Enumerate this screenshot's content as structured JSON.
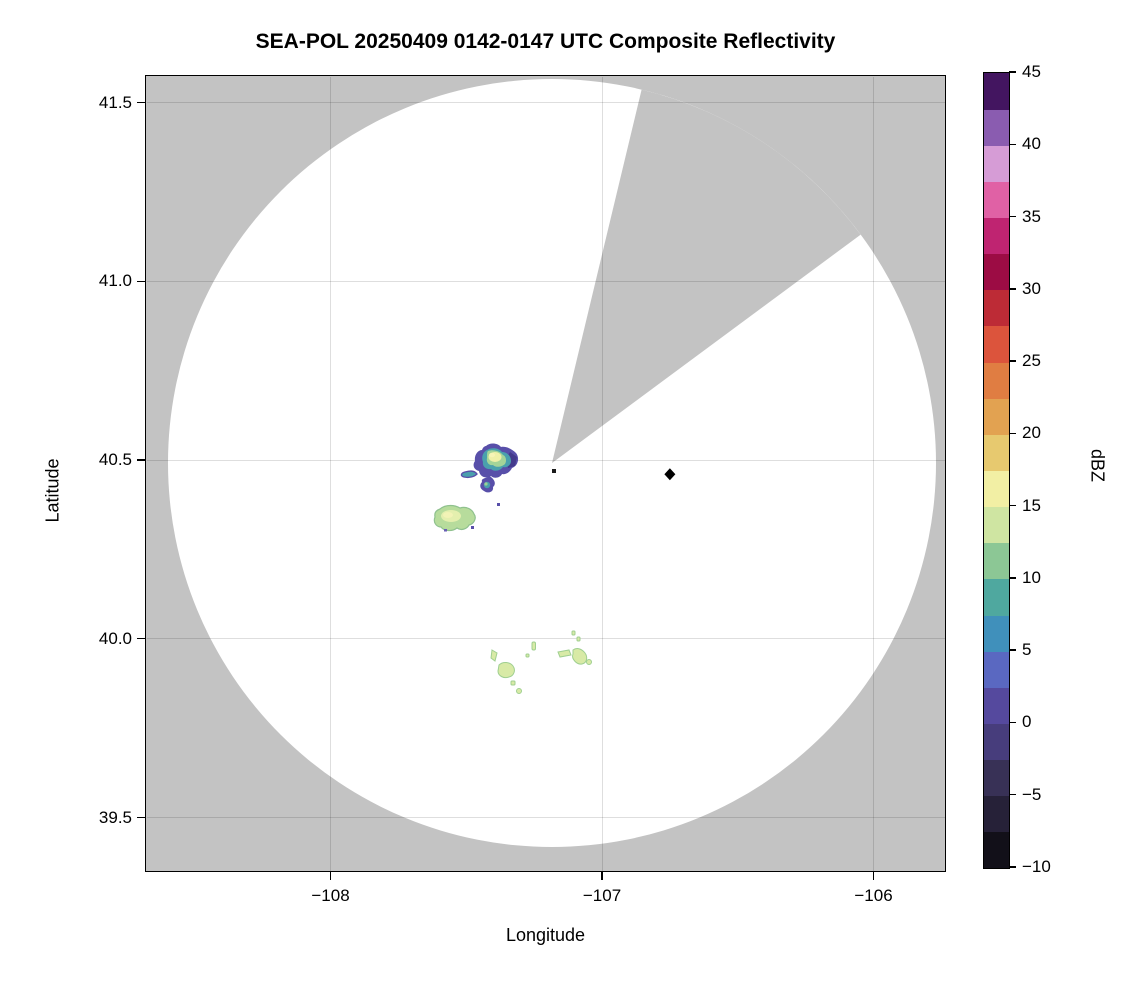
{
  "title": "SEA-POL 20250409 0142-0147 UTC Composite Reflectivity",
  "chart_data": {
    "type": "heatmap",
    "subtype": "radar-composite-reflectivity-ppi",
    "title": "SEA-POL 20250409 0142-0147 UTC Composite Reflectivity",
    "xlabel": "Longitude",
    "ylabel": "Latitude",
    "xlim": [
      -108.68,
      -105.74
    ],
    "ylim": [
      39.33,
      41.57
    ],
    "grid": true,
    "xticks": [
      {
        "label": "−108",
        "value": -108
      },
      {
        "label": "−107",
        "value": -107
      },
      {
        "label": "−106",
        "value": -106
      }
    ],
    "yticks": [
      {
        "label": "41.5",
        "value": 41.5
      },
      {
        "label": "41.0",
        "value": 41.0
      },
      {
        "label": "40.5",
        "value": 40.5
      },
      {
        "label": "40.0",
        "value": 40.0
      },
      {
        "label": "39.5",
        "value": 39.5
      }
    ],
    "colorbar": {
      "label": "dBZ",
      "vmin": -10,
      "vmax": 45,
      "orientation": "vertical-right",
      "ticks": [
        {
          "label": "45",
          "value": 45
        },
        {
          "label": "40",
          "value": 40
        },
        {
          "label": "35",
          "value": 35
        },
        {
          "label": "30",
          "value": 30
        },
        {
          "label": "25",
          "value": 25
        },
        {
          "label": "20",
          "value": 20
        },
        {
          "label": "15",
          "value": 15
        },
        {
          "label": "10",
          "value": 10
        },
        {
          "label": "5",
          "value": 5
        },
        {
          "label": "0",
          "value": 0
        },
        {
          "label": "−5",
          "value": -5
        },
        {
          "label": "−10",
          "value": -10
        }
      ],
      "band_step_dbz": 2.5,
      "band_colors_bottom_to_top": [
        "#121019",
        "#262138",
        "#383156",
        "#473d7c",
        "#55499e",
        "#5a68c1",
        "#4090bb",
        "#4fa89f",
        "#8cc795",
        "#cfe5a2",
        "#f2efa4",
        "#e7c96f",
        "#e2a251",
        "#e07d42",
        "#dc543c",
        "#bd2b36",
        "#9c0c44",
        "#bf2471",
        "#e061a5",
        "#d69cd6",
        "#8a5cb0",
        "#431560"
      ]
    },
    "radar": {
      "site": {
        "lon": -107.18,
        "lat": 40.47
      },
      "scan_circle_radius_deg_lon": 1.41,
      "nodata_color": "#c3c3c3",
      "blocked_sector_azimuth_deg": [
        13.5,
        53.5
      ],
      "note": "gray = no data (outside scan circle and inside blocked sector)"
    },
    "marker": {
      "shape": "diamond",
      "lon": -106.75,
      "lat": 40.46,
      "color": "#000000"
    },
    "echoes": [
      {
        "lon": -107.42,
        "lat": 40.5,
        "description": "main cell, yellow core ~17 dBZ, purple/blue fringe 0-5 dBZ",
        "max_dbz": 18
      },
      {
        "lon": -107.45,
        "lat": 40.44,
        "description": "trailing hook of main cell",
        "max_dbz": 10
      },
      {
        "lon": -107.56,
        "lat": 40.34,
        "description": "second cell, yellow-green core",
        "max_dbz": 16
      },
      {
        "lon": -107.35,
        "lat": 39.93,
        "description": "small light cell cluster",
        "max_dbz": 14
      },
      {
        "lon": -107.12,
        "lat": 39.95,
        "description": "small light cell cluster",
        "max_dbz": 14
      },
      {
        "lon": -107.25,
        "lat": 39.97,
        "description": "isolated specks",
        "max_dbz": 12
      }
    ]
  }
}
